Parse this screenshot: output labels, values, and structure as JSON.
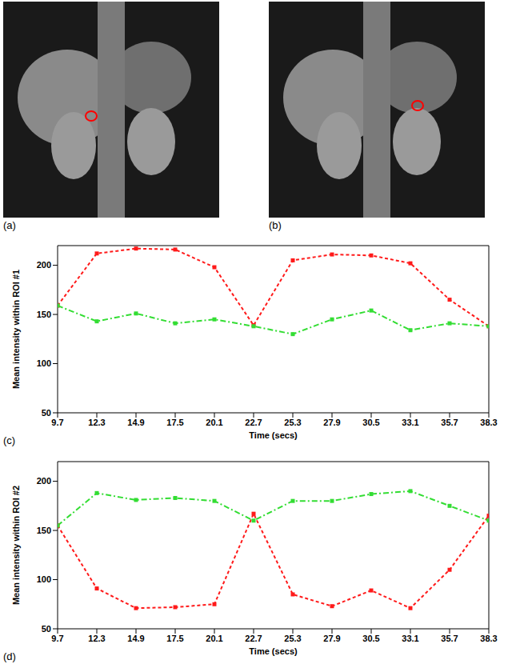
{
  "images": [
    {
      "label": "(a)"
    },
    {
      "label": "(b)"
    }
  ],
  "chart_data": [
    {
      "type": "line",
      "label": "(c)",
      "x_label": "Time (secs)",
      "y_label": "Mean intensity within ROI #1",
      "x": [
        9.7,
        12.3,
        14.9,
        17.5,
        20.1,
        22.7,
        25.3,
        27.9,
        30.5,
        33.1,
        35.7,
        38.3
      ],
      "xlim": [
        9.7,
        38.3
      ],
      "xticks": [
        9.7,
        12.3,
        14.9,
        17.5,
        20.1,
        22.7,
        25.3,
        27.9,
        30.5,
        33.1,
        35.7,
        38.3
      ],
      "ylim": [
        50,
        220
      ],
      "yticks": [
        50,
        100,
        150,
        200
      ],
      "grid": false,
      "series": [
        {
          "color": "#ff1a1a",
          "line_style": "dashed",
          "marker": "square",
          "values": [
            159,
            212,
            217,
            216,
            198,
            139,
            205,
            211,
            210,
            202,
            165,
            138
          ]
        },
        {
          "color": "#33dd33",
          "line_style": "dashdot",
          "marker": "square",
          "values": [
            159,
            143,
            151,
            141,
            145,
            138,
            130,
            145,
            154,
            134,
            141,
            138
          ]
        }
      ]
    },
    {
      "type": "line",
      "label": "(d)",
      "x_label": "Time (secs)",
      "y_label": "Mean intensity within ROI #2",
      "x": [
        9.7,
        12.3,
        14.9,
        17.5,
        20.1,
        22.7,
        25.3,
        27.9,
        30.5,
        33.1,
        35.7,
        38.3
      ],
      "xlim": [
        9.7,
        38.3
      ],
      "xticks": [
        9.7,
        12.3,
        14.9,
        17.5,
        20.1,
        22.7,
        25.3,
        27.9,
        30.5,
        33.1,
        35.7,
        38.3
      ],
      "ylim": [
        50,
        220
      ],
      "yticks": [
        50,
        100,
        150,
        200
      ],
      "grid": false,
      "series": [
        {
          "color": "#ff1a1a",
          "line_style": "dashed",
          "marker": "square",
          "values": [
            155,
            91,
            71,
            72,
            75,
            167,
            85,
            73,
            89,
            71,
            110,
            165
          ]
        },
        {
          "color": "#33dd33",
          "line_style": "dashdot",
          "marker": "square",
          "values": [
            155,
            188,
            181,
            183,
            180,
            160,
            180,
            180,
            187,
            190,
            175,
            160
          ]
        }
      ]
    }
  ]
}
